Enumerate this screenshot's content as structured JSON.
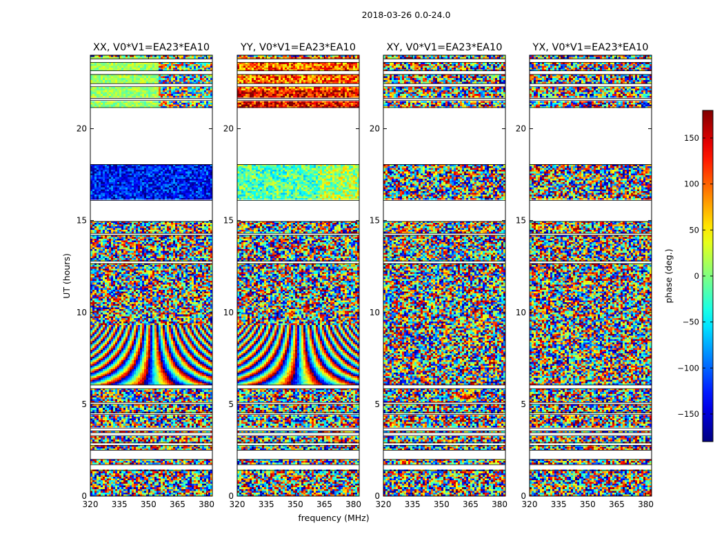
{
  "figure": {
    "suptitle": "2018-03-26 0.0-24.0",
    "xlabel": "frequency (MHz)",
    "ylabel": "UT (hours)"
  },
  "colors": {
    "flagged": "#ffffff",
    "colormap": "jet"
  },
  "chart_data": {
    "type": "heatmap",
    "x_ticks": [
      "320",
      "335",
      "350",
      "365",
      "380"
    ],
    "x_tick_values": [
      320,
      335,
      350,
      365,
      380
    ],
    "xlim": [
      320,
      383
    ],
    "y_ticks": [
      "0",
      "5",
      "10",
      "15",
      "20"
    ],
    "y_tick_values": [
      0,
      5,
      10,
      15,
      20
    ],
    "ylim": [
      0,
      24
    ],
    "flagged_time_ranges": [
      [
        1.4,
        1.7
      ],
      [
        2.0,
        2.5
      ],
      [
        2.75,
        2.9
      ],
      [
        3.3,
        3.45
      ],
      [
        3.55,
        3.7
      ],
      [
        4.45,
        4.55
      ],
      [
        5.0,
        5.1
      ],
      [
        5.85,
        6.05
      ],
      [
        12.65,
        12.8
      ],
      [
        14.2,
        14.3
      ],
      [
        14.95,
        16.1
      ],
      [
        18.05,
        21.15
      ],
      [
        21.55,
        21.65
      ],
      [
        22.3,
        22.45
      ],
      [
        22.95,
        23.15
      ],
      [
        23.6,
        23.8
      ]
    ],
    "panels": [
      {
        "title": "XX, V0*V1=EA23*EA10",
        "pattern": "XX"
      },
      {
        "title": "YY, V0*V1=EA23*EA10",
        "pattern": "YY"
      },
      {
        "title": "XY, V0*V1=EA23*EA10",
        "pattern": "noise"
      },
      {
        "title": "YX, V0*V1=EA23*EA10",
        "pattern": "noise"
      }
    ],
    "colorbar": {
      "label": "phase (deg.)",
      "range": [
        -180,
        180
      ],
      "ticks": [
        "−150",
        "−100",
        "−50",
        "0",
        "50",
        "100",
        "150"
      ],
      "tick_values": [
        -150,
        -100,
        -50,
        0,
        50,
        100,
        150
      ]
    }
  }
}
